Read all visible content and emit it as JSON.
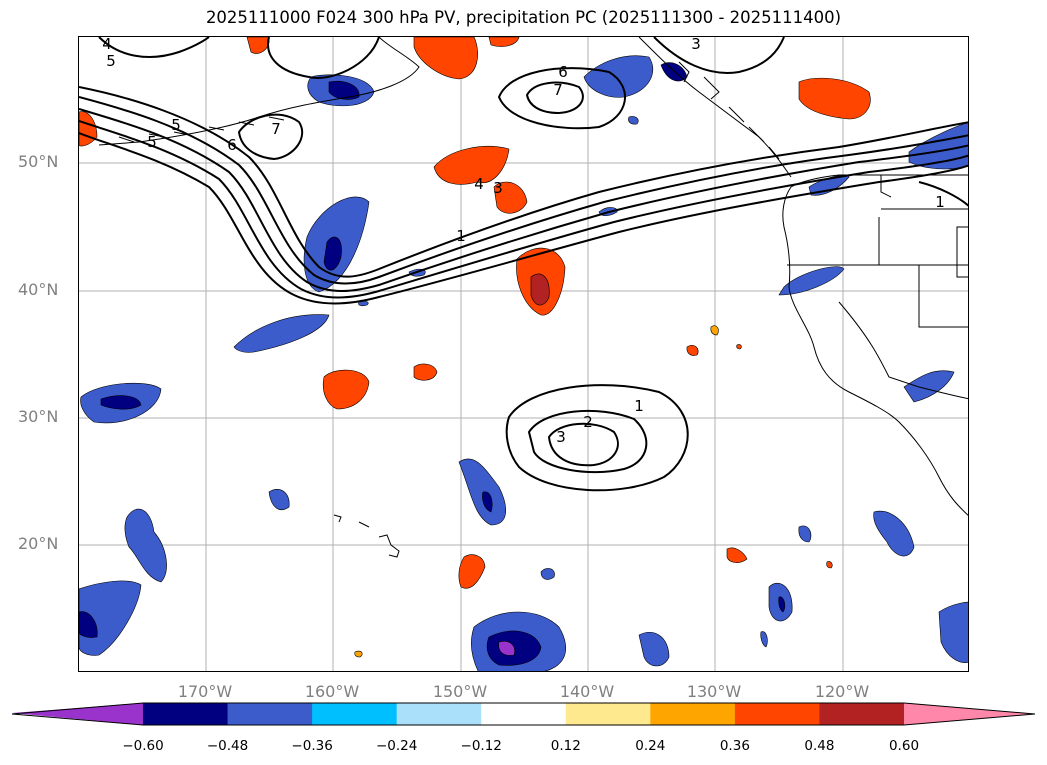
{
  "title": "2025111000 F024 300 hPa PV, precipitation PC (2025111300 - 2025111400)",
  "lat_labels": [
    "50°N",
    "40°N",
    "30°N",
    "20°N"
  ],
  "lon_labels": [
    "170°W",
    "160°W",
    "150°W",
    "140°W",
    "130°W",
    "120°W"
  ],
  "colorbar": {
    "ticks": [
      "−0.60",
      "−0.48",
      "−0.36",
      "−0.24",
      "−0.12",
      "0.12",
      "0.24",
      "0.36",
      "0.48",
      "0.60"
    ],
    "colors": [
      "#9933cc",
      "#000080",
      "#3c5ccc",
      "#00bfff",
      "#abe0fa",
      "#ffffff",
      "#ffe98f",
      "#ffa500",
      "#ff4500",
      "#b22222",
      "#ff88aa"
    ]
  },
  "contour_labels": [
    "4",
    "5",
    "5",
    "5",
    "6",
    "7",
    "6",
    "7",
    "4",
    "3",
    "1",
    "3",
    "1",
    "1",
    "2",
    "3"
  ]
}
